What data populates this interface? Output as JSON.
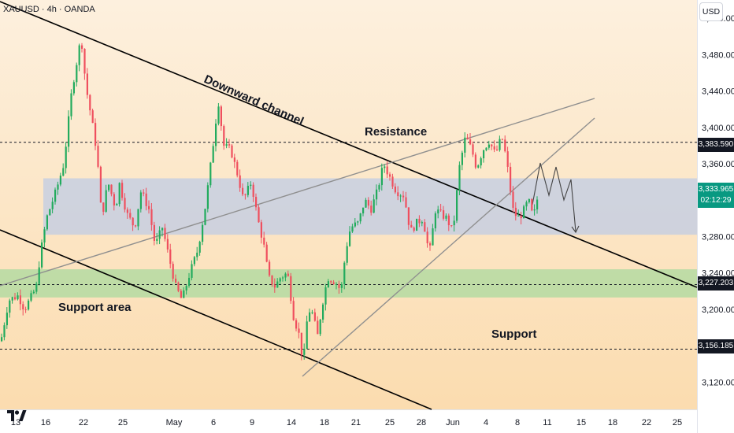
{
  "header": {
    "symbol": "XAUUSD · 4h · OANDA"
  },
  "price_axis": {
    "currency": "USD",
    "ticks": [
      "3,520.000",
      "3,480.000",
      "3,440.000",
      "3,400.000",
      "3,360.000",
      "3,320.000",
      "3,280.000",
      "3,240.000",
      "3,200.000",
      "3,160.000",
      "3,120.000"
    ],
    "ticks_values": [
      3520,
      3480,
      3440,
      3400,
      3360,
      3320,
      3280,
      3240,
      3200,
      3160,
      3120
    ]
  },
  "price_tags": {
    "level_1": "3,383.590",
    "current_price": "3,333.965",
    "countdown": "02:12:29",
    "level_2": "3,227.203",
    "level_3": "3,156.185"
  },
  "time_axis": {
    "labels": [
      "13",
      "16",
      "22",
      "25",
      "May",
      "6",
      "9",
      "14",
      "18",
      "21",
      "25",
      "28",
      "Jun",
      "4",
      "8",
      "11",
      "15",
      "18",
      "22",
      "25"
    ]
  },
  "annotations": {
    "downward_channel": "Downward channel",
    "resistance": "Resistance",
    "support_area": "Support area",
    "support": "Support"
  },
  "colors": {
    "bull": "#089981",
    "bear": "#f23645",
    "bull_candle": "#22ab5d",
    "bear_candle": "#ef4f5e",
    "zone_blue": "#b3c6ec",
    "zone_green": "#9ed89a",
    "background_top": "#fdf0de",
    "background_bottom": "#fbdcaf",
    "price_tag": "#131722"
  },
  "chart_data": {
    "type": "candlestick",
    "symbol": "XAUUSD",
    "interval": "4h",
    "source": "OANDA",
    "ylim": [
      3090,
      3540
    ],
    "levels": [
      3383.59,
      3227.203,
      3156.185
    ],
    "current_price": 3333.965,
    "resistance_zone": [
      3282,
      3344
    ],
    "support_zone": [
      3213,
      3244
    ],
    "close_path": [
      [
        0,
        3165
      ],
      [
        10,
        3210
      ],
      [
        22,
        3215
      ],
      [
        30,
        3200
      ],
      [
        45,
        3224
      ],
      [
        50,
        3260
      ],
      [
        58,
        3300
      ],
      [
        70,
        3330
      ],
      [
        80,
        3360
      ],
      [
        90,
        3440
      ],
      [
        102,
        3500
      ],
      [
        108,
        3445
      ],
      [
        115,
        3410
      ],
      [
        122,
        3372
      ],
      [
        128,
        3300
      ],
      [
        136,
        3340
      ],
      [
        146,
        3310
      ],
      [
        150,
        3340
      ],
      [
        160,
        3305
      ],
      [
        170,
        3290
      ],
      [
        178,
        3330
      ],
      [
        188,
        3310
      ],
      [
        196,
        3270
      ],
      [
        205,
        3290
      ],
      [
        214,
        3255
      ],
      [
        222,
        3225
      ],
      [
        230,
        3210
      ],
      [
        240,
        3240
      ],
      [
        250,
        3265
      ],
      [
        260,
        3315
      ],
      [
        268,
        3370
      ],
      [
        276,
        3430
      ],
      [
        283,
        3380
      ],
      [
        292,
        3375
      ],
      [
        300,
        3350
      ],
      [
        308,
        3320
      ],
      [
        318,
        3340
      ],
      [
        326,
        3300
      ],
      [
        334,
        3270
      ],
      [
        340,
        3235
      ],
      [
        348,
        3225
      ],
      [
        355,
        3235
      ],
      [
        364,
        3240
      ],
      [
        372,
        3190
      ],
      [
        378,
        3175
      ],
      [
        384,
        3140
      ],
      [
        390,
        3200
      ],
      [
        396,
        3195
      ],
      [
        402,
        3170
      ],
      [
        408,
        3205
      ],
      [
        415,
        3235
      ],
      [
        425,
        3230
      ],
      [
        432,
        3220
      ],
      [
        438,
        3265
      ],
      [
        444,
        3290
      ],
      [
        454,
        3295
      ],
      [
        462,
        3320
      ],
      [
        470,
        3310
      ],
      [
        478,
        3330
      ],
      [
        486,
        3360
      ],
      [
        494,
        3345
      ],
      [
        502,
        3330
      ],
      [
        512,
        3325
      ],
      [
        520,
        3285
      ],
      [
        528,
        3295
      ],
      [
        536,
        3300
      ],
      [
        544,
        3260
      ],
      [
        552,
        3310
      ],
      [
        558,
        3305
      ],
      [
        566,
        3300
      ],
      [
        574,
        3285
      ],
      [
        582,
        3355
      ],
      [
        590,
        3390
      ],
      [
        598,
        3375
      ],
      [
        604,
        3355
      ],
      [
        612,
        3375
      ],
      [
        620,
        3385
      ],
      [
        628,
        3370
      ],
      [
        636,
        3390
      ],
      [
        642,
        3365
      ],
      [
        650,
        3310
      ],
      [
        656,
        3300
      ],
      [
        662,
        3305
      ],
      [
        670,
        3320
      ],
      [
        676,
        3300
      ],
      [
        682,
        3325
      ]
    ]
  }
}
